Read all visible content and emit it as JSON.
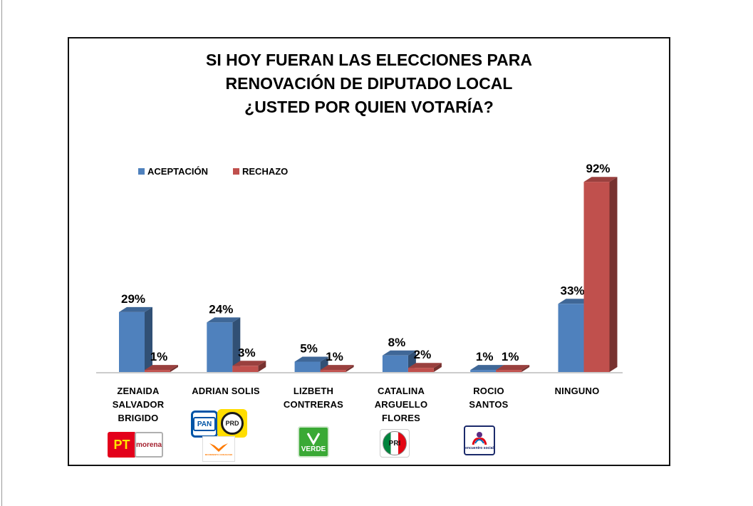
{
  "title_lines": [
    "SI HOY FUERAN LAS ELECCIONES PARA",
    "RENOVACIÓN DE DIPUTADO LOCAL",
    "¿USTED POR QUIEN VOTARÍA?"
  ],
  "chart_data": {
    "type": "bar",
    "style": "3d-clustered",
    "title": "SI HOY FUERAN LAS ELECCIONES PARA RENOVACIÓN DE DIPUTADO LOCAL ¿USTED POR QUIEN VOTARÍA?",
    "categories": [
      "ZENAIDA SALVADOR BRIGIDO",
      "ADRIAN SOLIS",
      "LIZBETH CONTRERAS",
      "CATALINA ARGUELLO FLORES",
      "ROCIO SANTOS",
      "NINGUNO"
    ],
    "category_lines": [
      [
        "ZENAIDA",
        "SALVADOR",
        "BRIGIDO"
      ],
      [
        "ADRIAN SOLIS"
      ],
      [
        "LIZBETH",
        "CONTRERAS"
      ],
      [
        "CATALINA",
        "ARGUELLO",
        "FLORES"
      ],
      [
        "ROCIO",
        "SANTOS"
      ],
      [
        "NINGUNO"
      ]
    ],
    "series": [
      {
        "name": "ACEPTACIÓN",
        "color": "#4f81bd",
        "values": [
          29,
          24,
          5,
          8,
          1,
          33
        ],
        "labels": [
          "29%",
          "24%",
          "5%",
          "8%",
          "1%",
          "33%"
        ]
      },
      {
        "name": "RECHAZO",
        "color": "#c0504d",
        "values": [
          1,
          3,
          1,
          2,
          1,
          92
        ],
        "labels": [
          "1%",
          "3%",
          "1%",
          "2%",
          "1%",
          "92%"
        ]
      }
    ],
    "ylim": [
      0,
      100
    ],
    "grid": false,
    "legend_position": "top-left",
    "xlabel": "",
    "ylabel": ""
  },
  "logos": {
    "pt": "PT",
    "morena": "morena",
    "pan": "PAN",
    "prd": "PRD",
    "mc": "MOVIMIENTO CIUDADANO",
    "verde": "VERDE",
    "pri": "PRI",
    "pes": "encuentro social"
  }
}
